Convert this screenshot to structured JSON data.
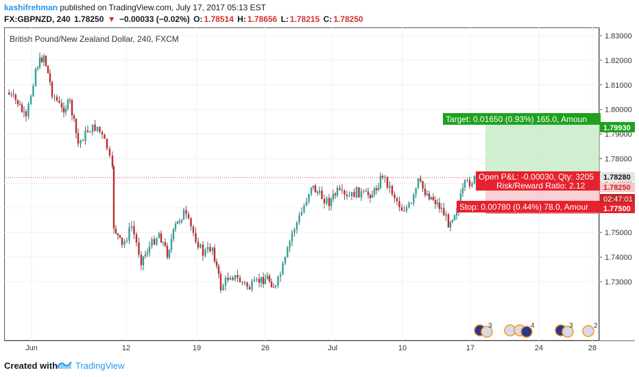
{
  "header": {
    "author": "kashifrehman",
    "published_text": "published on TradingView.com, July 17, 2017 05:13 EST",
    "symbol": "FX:GBPNZD, 240",
    "last": "1.78250",
    "change_arrow": "▼",
    "change": "−0.00033 (−0.02%)",
    "o_label": "O:",
    "o_value": "1.78514",
    "h_label": "H:",
    "h_value": "1.78656",
    "l_label": "L:",
    "l_value": "1.78215",
    "c_label": "C:",
    "c_value": "1.78250"
  },
  "chart": {
    "title": "British Pound/New Zealand Dollar, 240, FXCM",
    "price_axis": [
      "1.83000",
      "1.82000",
      "1.81000",
      "1.80000",
      "1.79000",
      "1.78000",
      "1.77000",
      "1.76000",
      "1.75000",
      "1.74000",
      "1.73000"
    ],
    "time_axis": [
      "Jun",
      "12",
      "19",
      "26",
      "Jul",
      "10",
      "17",
      "24",
      "28"
    ],
    "price_tags": {
      "target": "1.79930",
      "current_high": "1.78280",
      "last": "1.78250",
      "countdown": "02:47:01",
      "stop": "1.77500"
    },
    "position": {
      "target_label": "Target: 0.01650 (0.93%) 165.0, Amoun",
      "open_pl_label": "Open P&L: -0.00030, Qty: 3205",
      "rr_label": "Risk/Reward Ratio: 2.12",
      "stop_label": "Stop: 0.00780 (0.44%) 78.0, Amour"
    },
    "events": [
      {
        "flags": "nz-uk-icons",
        "count": "3"
      },
      {
        "flags": "uk-nz-icons",
        "count": "4"
      },
      {
        "flags": "nz-uk-icons",
        "count": "3"
      },
      {
        "flags": "uk-icon",
        "count": "2"
      }
    ],
    "colors": {
      "up": "#26a69a",
      "down": "#c62828",
      "target": "#1ea11e",
      "stop": "#e5222e",
      "accent": "#2196f3"
    }
  },
  "footer": {
    "created_with": "Created with",
    "brand": "TradingView"
  }
}
